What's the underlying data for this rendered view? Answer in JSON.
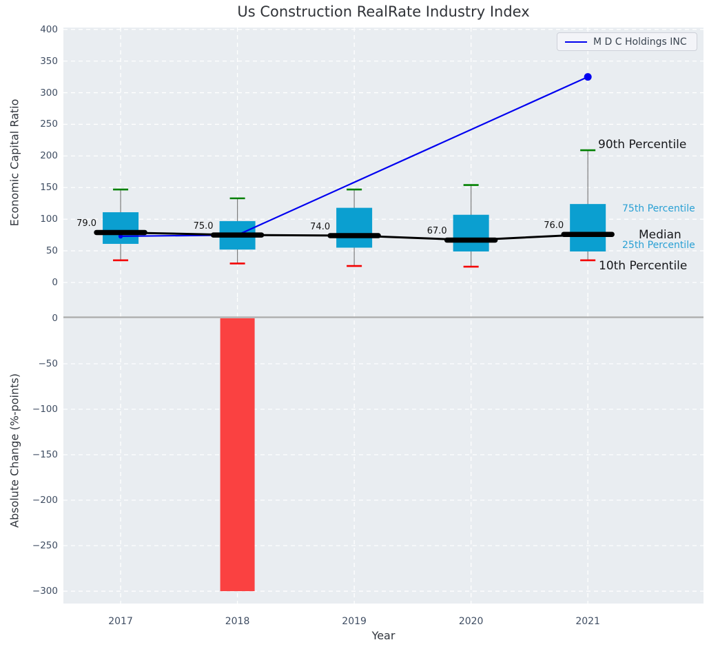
{
  "title": "Us Construction RealRate Industry Index",
  "legend": {
    "label": "M D C Holdings INC",
    "line_color": "#0000ee"
  },
  "colors": {
    "axes_background": "#e9edf1",
    "grid": "#ffffff",
    "box_fill": "#0b9fd0",
    "whisker": "#7c7c7c",
    "cap_top": "#008000",
    "cap_bottom": "#f40000",
    "median_line": "#000000",
    "company_line": "#0000f0",
    "bar_negative": "#fa4141",
    "zero_line": "#ababab",
    "tick_text": "#3f4d62"
  },
  "chart_data": [
    {
      "type": "boxplot+line",
      "title": "Us Construction RealRate Industry Index",
      "ylabel": "Economic Capital Ratio",
      "yticks": [
        0,
        50,
        100,
        150,
        200,
        250,
        300,
        350,
        400
      ],
      "ylim": [
        -24,
        403
      ],
      "grid": true,
      "categories": [
        2017,
        2018,
        2019,
        2020,
        2021
      ],
      "boxes": [
        {
          "year": 2017,
          "p10": 35,
          "p25": 61,
          "median": 79,
          "p75": 111,
          "p90": 147,
          "median_label": "79.0"
        },
        {
          "year": 2018,
          "p10": 30,
          "p25": 52,
          "median": 75,
          "p75": 97,
          "p90": 133,
          "median_label": "75.0"
        },
        {
          "year": 2019,
          "p10": 26,
          "p25": 55,
          "median": 74,
          "p75": 118,
          "p90": 147,
          "median_label": "74.0"
        },
        {
          "year": 2020,
          "p10": 25,
          "p25": 49,
          "median": 67,
          "p75": 107,
          "p90": 154,
          "median_label": "67.0"
        },
        {
          "year": 2021,
          "p10": 35,
          "p25": 49,
          "median": 76,
          "p75": 124,
          "p90": 209,
          "median_label": "76.0"
        }
      ],
      "series": [
        {
          "name": "M D C Holdings INC",
          "points": [
            {
              "x": 2017,
              "y": 73
            },
            {
              "x": 2018,
              "y": 75
            },
            {
              "x": 2021,
              "y": 325
            }
          ]
        }
      ],
      "annotations": [
        {
          "text": "90th Percentile"
        },
        {
          "text": "75th Percentile"
        },
        {
          "text": "Median"
        },
        {
          "text": "25th Percentile"
        },
        {
          "text": "10th Percentile"
        }
      ],
      "legend_position": "upper right"
    },
    {
      "type": "bar",
      "ylabel": "Absolute Change (%-points)",
      "xlabel": "Year",
      "yticks": [
        0,
        -50,
        -100,
        -150,
        -200,
        -250,
        -300
      ],
      "ylim": [
        -313.6,
        22.7
      ],
      "grid": true,
      "categories": [
        2017,
        2018,
        2019,
        2020,
        2021
      ],
      "values": [
        null,
        -300,
        null,
        null,
        null
      ]
    }
  ]
}
